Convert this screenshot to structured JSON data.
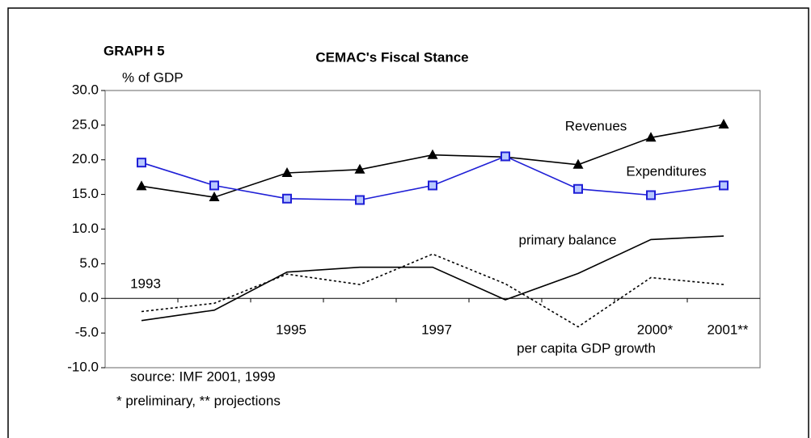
{
  "chart_data": {
    "type": "line",
    "title": "CEMAC's Fiscal Stance",
    "label": "GRAPH 5",
    "y_label": "% of GDP",
    "annotations": [
      "source: IMF 2001, 1999",
      "* preliminary, ** projections"
    ],
    "categories": [
      "1993",
      null,
      "1995",
      null,
      "1997",
      null,
      null,
      "2000*",
      "2001**"
    ],
    "ylim": [
      -10,
      30
    ],
    "yticks": [
      {
        "value": -10,
        "label": "-10.0"
      },
      {
        "value": -5,
        "label": "-5.0"
      },
      {
        "value": 0,
        "label": "0.0"
      },
      {
        "value": 5,
        "label": "5.0"
      },
      {
        "value": 10,
        "label": "10.0"
      },
      {
        "value": 15,
        "label": "15.0"
      },
      {
        "value": 20,
        "label": "20.0"
      },
      {
        "value": 25,
        "label": "25.0"
      },
      {
        "value": 30,
        "label": "30.0"
      }
    ],
    "series": [
      {
        "name": "Revenues",
        "color": "#000000",
        "marker": "triangle",
        "values": [
          16.2,
          14.6,
          18.1,
          18.6,
          20.7,
          20.4,
          19.3,
          23.2,
          25.1
        ]
      },
      {
        "name": "Expenditures",
        "color": "#1f1fd6",
        "marker": "square",
        "values": [
          19.6,
          16.3,
          14.4,
          14.2,
          16.3,
          20.5,
          15.8,
          14.9,
          16.3
        ]
      },
      {
        "name": "primary balance",
        "color": "#000000",
        "values": [
          -3.2,
          -1.7,
          3.8,
          4.5,
          4.5,
          -0.2,
          3.6,
          8.5,
          9.0
        ]
      },
      {
        "name": "per capita GDP growth",
        "color": "#000000",
        "dash": true,
        "values": [
          -1.9,
          -0.7,
          3.5,
          2.0,
          6.4,
          2.1,
          -4.1,
          3.0,
          2.0
        ]
      }
    ]
  }
}
